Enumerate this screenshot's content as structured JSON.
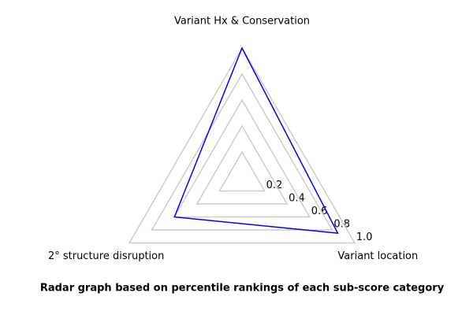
{
  "chart_data": {
    "type": "radar",
    "title": "Radar graph based on percentile rankings of each sub-score category",
    "categories": [
      "Variant Hx & Conservation",
      "Variant location",
      "2° structure disruption"
    ],
    "series": [
      {
        "color": "#0000ff",
        "values": [
          1.0,
          0.85,
          0.6
        ]
      }
    ],
    "rlim": [
      0,
      1
    ],
    "rticks": [
      0.2,
      0.4,
      0.6,
      0.8,
      {
        "value": 1,
        "label": "1.0"
      }
    ],
    "grid": true,
    "grid_color": "#cccccc"
  }
}
